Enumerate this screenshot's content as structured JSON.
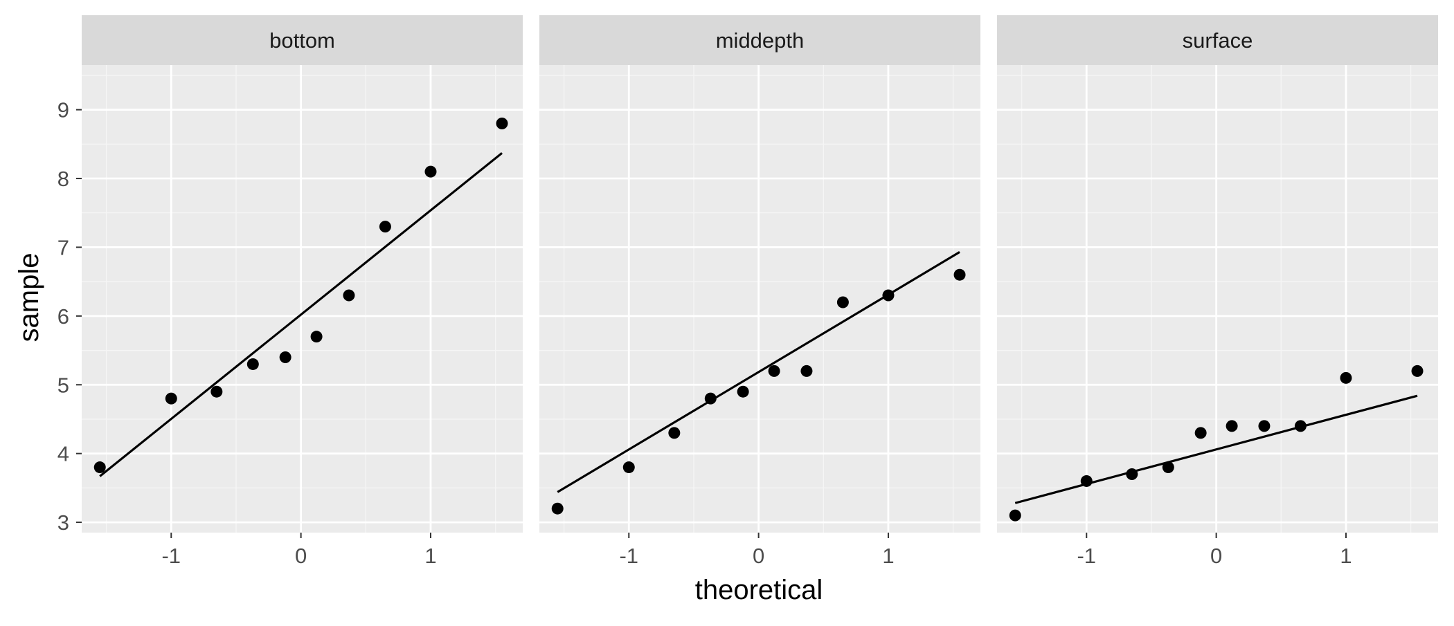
{
  "chart_data": {
    "type": "scatter",
    "facet": true,
    "xlabel": "theoretical",
    "ylabel": "sample",
    "xlim": [
      -1.69,
      1.71
    ],
    "ylim": [
      2.85,
      9.65
    ],
    "x_ticks": [
      -1,
      0,
      1
    ],
    "x_tick_labels": [
      "-1",
      "0",
      "1"
    ],
    "y_ticks": [
      3,
      4,
      5,
      6,
      7,
      8,
      9
    ],
    "y_tick_labels": [
      "3",
      "4",
      "5",
      "6",
      "7",
      "8",
      "9"
    ],
    "grid": true,
    "colors": {
      "panel_bg": "#ebebeb",
      "strip_bg": "#d9d9d9",
      "grid_major": "#ffffff",
      "grid_minor": "#f5f5f5",
      "point": "#000000",
      "line": "#000000",
      "text": "#4d4d4d",
      "title_text": "#000000"
    },
    "panels": [
      {
        "strip": "bottom",
        "points": [
          {
            "x": -1.55,
            "y": 3.8
          },
          {
            "x": -1.0,
            "y": 4.8
          },
          {
            "x": -0.65,
            "y": 4.9
          },
          {
            "x": -0.37,
            "y": 5.3
          },
          {
            "x": -0.12,
            "y": 5.4
          },
          {
            "x": 0.12,
            "y": 5.7
          },
          {
            "x": 0.37,
            "y": 6.3
          },
          {
            "x": 0.65,
            "y": 7.3
          },
          {
            "x": 1.0,
            "y": 8.1
          },
          {
            "x": 1.55,
            "y": 8.8
          }
        ],
        "line": {
          "x": [
            -1.55,
            1.55
          ],
          "y": [
            3.67,
            8.37
          ]
        }
      },
      {
        "strip": "middepth",
        "points": [
          {
            "x": -1.55,
            "y": 3.2
          },
          {
            "x": -1.0,
            "y": 3.8
          },
          {
            "x": -0.65,
            "y": 4.3
          },
          {
            "x": -0.37,
            "y": 4.8
          },
          {
            "x": -0.12,
            "y": 4.9
          },
          {
            "x": 0.12,
            "y": 5.2
          },
          {
            "x": 0.37,
            "y": 5.2
          },
          {
            "x": 0.65,
            "y": 6.2
          },
          {
            "x": 1.0,
            "y": 6.3
          },
          {
            "x": 1.55,
            "y": 6.6
          }
        ],
        "line": {
          "x": [
            -1.55,
            1.55
          ],
          "y": [
            3.44,
            6.93
          ]
        }
      },
      {
        "strip": "surface",
        "points": [
          {
            "x": -1.55,
            "y": 3.1
          },
          {
            "x": -1.0,
            "y": 3.6
          },
          {
            "x": -0.65,
            "y": 3.7
          },
          {
            "x": -0.37,
            "y": 3.8
          },
          {
            "x": -0.12,
            "y": 4.3
          },
          {
            "x": 0.12,
            "y": 4.4
          },
          {
            "x": 0.37,
            "y": 4.4
          },
          {
            "x": 0.65,
            "y": 4.4
          },
          {
            "x": 1.0,
            "y": 5.1
          },
          {
            "x": 1.55,
            "y": 5.2
          }
        ],
        "line": {
          "x": [
            -1.55,
            1.55
          ],
          "y": [
            3.28,
            4.84
          ]
        }
      }
    ]
  }
}
